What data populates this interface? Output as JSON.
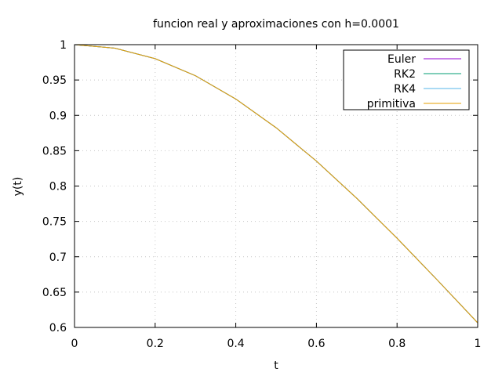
{
  "chart_data": {
    "type": "line",
    "title": "funcion real y aproximaciones con h=0.0001",
    "xlabel": "t",
    "ylabel": "y(t)",
    "xlim": [
      0,
      1
    ],
    "ylim": [
      0.6,
      1
    ],
    "xticks": [
      0,
      0.2,
      0.4,
      0.6,
      0.8,
      1
    ],
    "xtick_labels": [
      "0",
      "0.2",
      "0.4",
      "0.6",
      "0.8",
      "1"
    ],
    "yticks": [
      0.6,
      0.65,
      0.7,
      0.75,
      0.8,
      0.85,
      0.9,
      0.95,
      1
    ],
    "ytick_labels": [
      "0.6",
      "0.65",
      "0.7",
      "0.75",
      "0.8",
      "0.85",
      "0.9",
      "0.95",
      "1"
    ],
    "grid": true,
    "legend_position": "top-right",
    "x": [
      0,
      0.1,
      0.2,
      0.3,
      0.4,
      0.5,
      0.6,
      0.7,
      0.8,
      0.9,
      1.0
    ],
    "series": [
      {
        "name": "Euler",
        "color": "#9400d3",
        "values": [
          1.0,
          0.99501,
          0.9802,
          0.956,
          0.92312,
          0.8825,
          0.83527,
          0.7827,
          0.72615,
          0.66698,
          0.60653
        ]
      },
      {
        "name": "RK2",
        "color": "#009e73",
        "values": [
          1.0,
          0.99501,
          0.9802,
          0.956,
          0.92312,
          0.8825,
          0.83527,
          0.7827,
          0.72615,
          0.66698,
          0.60653
        ]
      },
      {
        "name": "RK4",
        "color": "#56b4e9",
        "values": [
          1.0,
          0.99501,
          0.9802,
          0.956,
          0.92312,
          0.8825,
          0.83527,
          0.7827,
          0.72615,
          0.66698,
          0.60653
        ]
      },
      {
        "name": "primitiva",
        "color": "#e69f00",
        "values": [
          1.0,
          0.99501,
          0.9802,
          0.956,
          0.92312,
          0.8825,
          0.83527,
          0.7827,
          0.72615,
          0.66698,
          0.60653
        ]
      }
    ]
  }
}
